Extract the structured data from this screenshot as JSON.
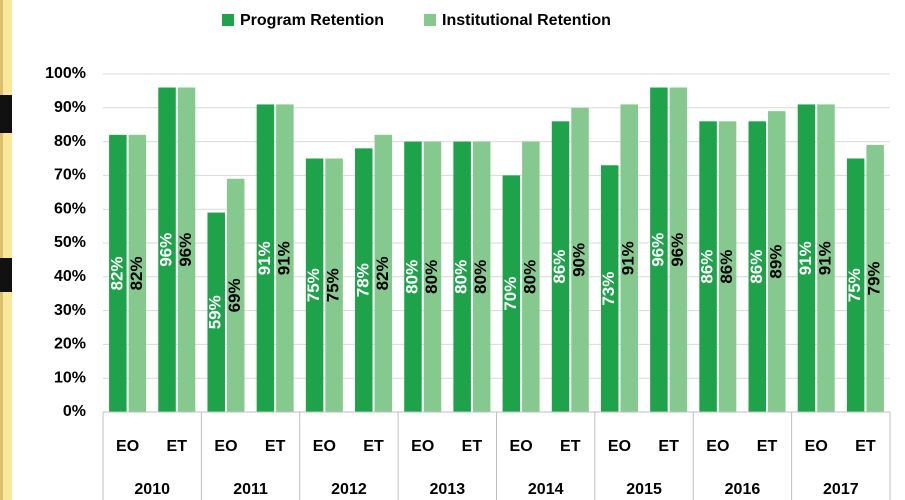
{
  "chart_data": {
    "type": "bar",
    "groups": [
      "2010",
      "2011",
      "2012",
      "2013",
      "2014",
      "2015",
      "2016",
      "2017"
    ],
    "categories": [
      "EO",
      "ET",
      "EO",
      "ET",
      "EO",
      "ET",
      "EO",
      "ET",
      "EO",
      "ET",
      "EO",
      "ET",
      "EO",
      "ET",
      "EO",
      "ET"
    ],
    "series": [
      {
        "name": "Program Retention",
        "color": "#1ea34b",
        "values": [
          82,
          96,
          59,
          91,
          75,
          78,
          80,
          80,
          70,
          86,
          73,
          96,
          86,
          86,
          91,
          75
        ],
        "value_labels": [
          "82%",
          "96%",
          "59%",
          "91%",
          "75%",
          "78%",
          "80%",
          "80%",
          "70%",
          "86%",
          "73%",
          "96%",
          "86%",
          "86%",
          "91%",
          "75%"
        ]
      },
      {
        "name": "Institutional Retention",
        "color": "#86c98f",
        "values": [
          82,
          96,
          69,
          91,
          75,
          82,
          80,
          80,
          80,
          90,
          91,
          96,
          86,
          89,
          91,
          79
        ],
        "value_labels": [
          "82%",
          "96%",
          "69%",
          "91%",
          "75%",
          "82%",
          "80%",
          "80%",
          "80%",
          "90%",
          "91%",
          "96%",
          "86%",
          "89%",
          "91%",
          "79%"
        ]
      }
    ],
    "ylim": [
      0,
      100
    ],
    "yticks": [
      {
        "value": 0,
        "label": "0%"
      },
      {
        "value": 10,
        "label": "10%"
      },
      {
        "value": 20,
        "label": "20%"
      },
      {
        "value": 30,
        "label": "30%"
      },
      {
        "value": 40,
        "label": "40%"
      },
      {
        "value": 50,
        "label": "50%"
      },
      {
        "value": 60,
        "label": "60%"
      },
      {
        "value": 70,
        "label": "70%"
      },
      {
        "value": 80,
        "label": "80%"
      },
      {
        "value": 90,
        "label": "90%"
      },
      {
        "value": 100,
        "label": "100%"
      }
    ],
    "grid": true,
    "legend": "top"
  }
}
